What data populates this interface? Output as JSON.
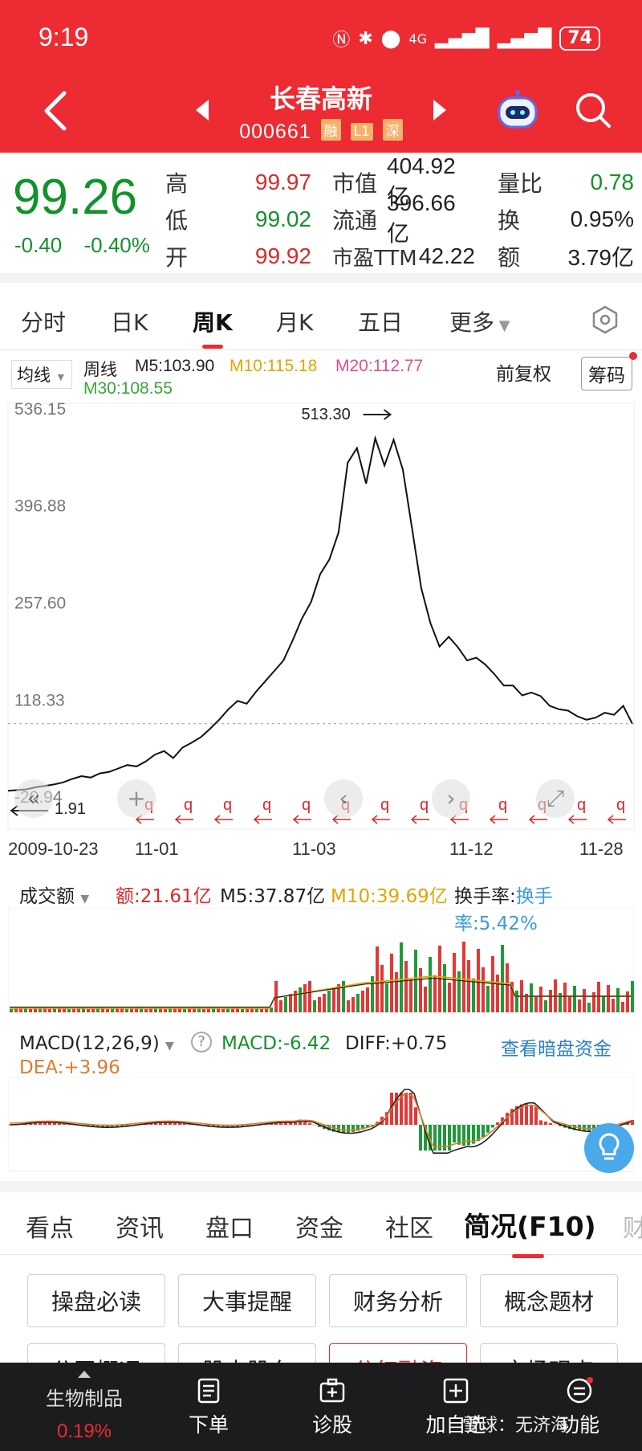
{
  "status": {
    "time": "9:19",
    "battery": "74",
    "signal_label": "4G"
  },
  "header": {
    "title": "长春高新",
    "code": "000661",
    "tags": [
      "融",
      "L1",
      "深"
    ]
  },
  "quote": {
    "price": "99.26",
    "change": "-0.40",
    "change_pct": "-0.40%",
    "rows": [
      {
        "l1": "高",
        "v1": "99.97",
        "l2": "市值",
        "v2": "404.92亿",
        "l3": "量比",
        "v3": "0.78"
      },
      {
        "l1": "低",
        "v1": "99.02",
        "l2": "流通",
        "v2": "396.66亿",
        "l3": "换",
        "v3": "0.95%"
      },
      {
        "l1": "开",
        "v1": "99.92",
        "l2": "市盈TTM",
        "v2": "42.22",
        "l3": "额",
        "v3": "3.79亿"
      }
    ]
  },
  "ktabs": [
    "分时",
    "日K",
    "周K",
    "月K",
    "五日",
    "更多"
  ],
  "ma": {
    "selector": "均线",
    "label": "周线",
    "m5": "M5:103.90",
    "m10": "M10:115.18",
    "m20": "M20:112.77",
    "m30": "M30:108.55",
    "fuquan": "前复权",
    "chouma": "筹码",
    "colors": {
      "m5": "#222222",
      "m10": "#e2a400",
      "m20": "#e0508a",
      "m30": "#3aa53a"
    }
  },
  "chart_data": [
    {
      "type": "line",
      "title": "周K",
      "y_ticks": [
        "536.15",
        "396.88",
        "257.60",
        "118.33",
        "-20.94"
      ],
      "ylim": [
        -20.94,
        536.15
      ],
      "x_labels": [
        "2009-10-23",
        "11-01",
        "11-03",
        "11-12",
        "11-28"
      ],
      "annotations": {
        "high": "513.30",
        "low": "1.91"
      },
      "last_price": 99.26,
      "values": [
        3,
        4,
        5,
        8,
        10,
        12,
        15,
        20,
        24,
        22,
        28,
        30,
        35,
        40,
        38,
        45,
        55,
        60,
        50,
        65,
        72,
        80,
        92,
        105,
        120,
        132,
        128,
        145,
        160,
        175,
        190,
        215,
        250,
        280,
        310,
        335,
        380,
        470,
        495,
        450,
        505,
        470,
        513,
        460,
        380,
        300,
        240,
        210,
        230,
        205,
        190,
        200,
        180,
        170,
        160,
        150,
        140,
        150,
        135,
        125,
        120,
        118,
        110,
        105,
        108,
        115,
        112,
        125,
        99
      ]
    },
    {
      "type": "bar",
      "title": "成交额",
      "labels": {
        "amount": "额:21.61亿",
        "m5": "M5:37.87亿",
        "m10": "M10:39.69亿",
        "turnover": "换手率:5.42%"
      }
    },
    {
      "type": "bar",
      "title": "MACD(12,26,9)",
      "labels": {
        "macd": "MACD:-6.42",
        "diff": "DIFF:+0.75",
        "dea": "DEA:+3.96",
        "link": "查看暗盘资金"
      }
    }
  ],
  "ftabs": [
    "看点",
    "资讯",
    "盘口",
    "资金",
    "社区",
    "简况(F10)",
    "财"
  ],
  "buttons": [
    "操盘必读",
    "大事提醒",
    "财务分析",
    "概念题材",
    "公司概况",
    "股本股东",
    "分红融资",
    "市场观点"
  ],
  "bottom": {
    "sector": "生物制品",
    "sector_pct": "0.19%",
    "nav": [
      "下单",
      "诊股",
      "加自选",
      "功能"
    ],
    "watermark": "雪球：无济海"
  }
}
